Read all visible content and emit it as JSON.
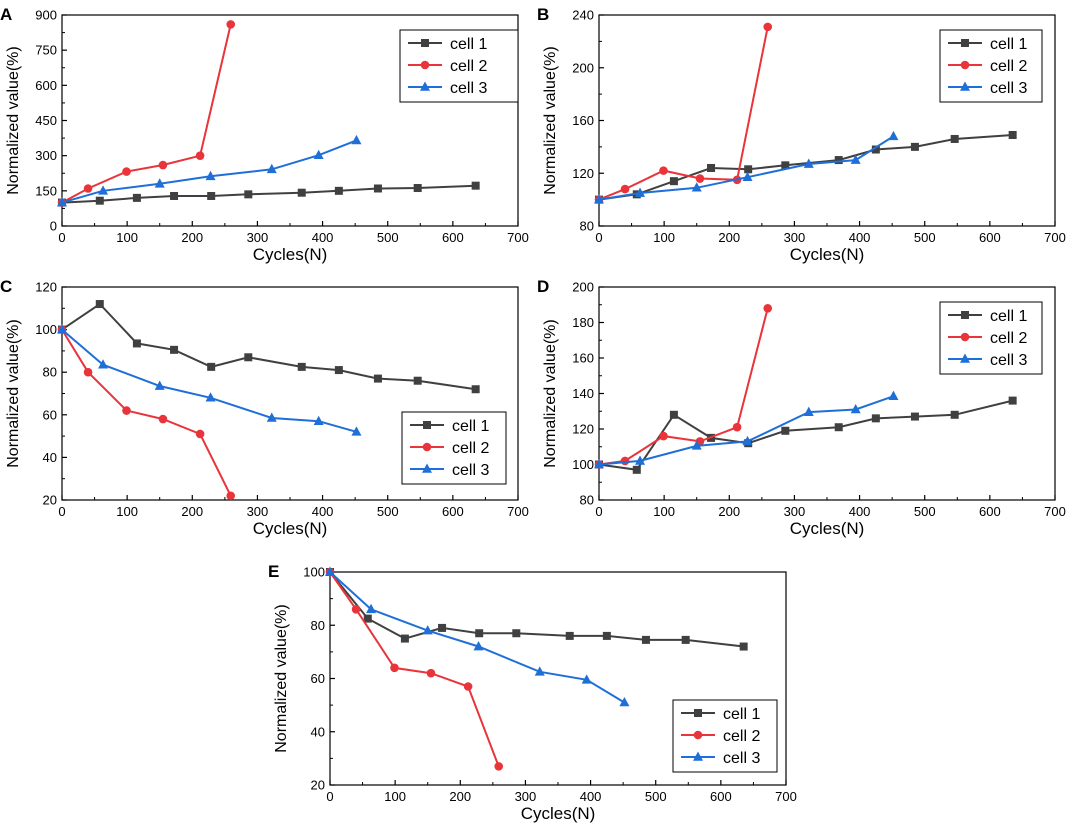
{
  "figure": {
    "description_panels": [
      "A",
      "B",
      "C",
      "D",
      "E"
    ]
  },
  "colors": {
    "cell1": "#404040",
    "cell2": "#e8343a",
    "cell3": "#1f6fd8",
    "axis": "#000000"
  },
  "chart_data": [
    {
      "panel": "A",
      "type": "line",
      "xlabel": "Cycles(N)",
      "ylabel": "Normalized value(%)",
      "xlim": [
        0,
        700
      ],
      "ylim": [
        0,
        900
      ],
      "xticks": [
        0,
        100,
        200,
        300,
        400,
        500,
        600,
        700
      ],
      "yticks": [
        0,
        150,
        300,
        450,
        600,
        750,
        900
      ],
      "legend": "top-right",
      "series": [
        {
          "name": "cell 1",
          "marker": "square",
          "x": [
            0,
            58,
            115,
            172,
            229,
            286,
            368,
            425,
            485,
            546,
            635
          ],
          "y": [
            100,
            108,
            120,
            128,
            128,
            135,
            142,
            150,
            160,
            162,
            172
          ]
        },
        {
          "name": "cell 2",
          "marker": "circle",
          "x": [
            0,
            40,
            99,
            155,
            212,
            259
          ],
          "y": [
            100,
            160,
            232,
            260,
            300,
            860
          ]
        },
        {
          "name": "cell 3",
          "marker": "triangle",
          "x": [
            0,
            63,
            150,
            228,
            322,
            394,
            452
          ],
          "y": [
            100,
            150,
            180,
            212,
            242,
            302,
            365
          ]
        }
      ]
    },
    {
      "panel": "B",
      "type": "line",
      "xlabel": "Cycles(N)",
      "ylabel": "Normalized value(%)",
      "xlim": [
        0,
        700
      ],
      "ylim": [
        80,
        240
      ],
      "xticks": [
        0,
        100,
        200,
        300,
        400,
        500,
        600,
        700
      ],
      "yticks": [
        80,
        120,
        160,
        200,
        240
      ],
      "legend": "top-right",
      "series": [
        {
          "name": "cell 1",
          "marker": "square",
          "x": [
            0,
            58,
            115,
            172,
            229,
            286,
            368,
            425,
            485,
            546,
            635
          ],
          "y": [
            100,
            104,
            114,
            124,
            123,
            126,
            130,
            138,
            140,
            146,
            149
          ]
        },
        {
          "name": "cell 2",
          "marker": "circle",
          "x": [
            0,
            40,
            99,
            155,
            212,
            259
          ],
          "y": [
            100,
            108,
            122,
            116,
            115,
            231
          ]
        },
        {
          "name": "cell 3",
          "marker": "triangle",
          "x": [
            0,
            63,
            150,
            228,
            322,
            394,
            452
          ],
          "y": [
            100,
            105,
            109,
            117,
            127,
            130,
            148
          ]
        }
      ]
    },
    {
      "panel": "C",
      "type": "line",
      "xlabel": "Cycles(N)",
      "ylabel": "Normalized value(%)",
      "xlim": [
        0,
        700
      ],
      "ylim": [
        20,
        120
      ],
      "xticks": [
        0,
        100,
        200,
        300,
        400,
        500,
        600,
        700
      ],
      "yticks": [
        20,
        40,
        60,
        80,
        100,
        120
      ],
      "legend": "bottom-right",
      "series": [
        {
          "name": "cell 1",
          "marker": "square",
          "x": [
            0,
            58,
            115,
            172,
            229,
            286,
            368,
            425,
            485,
            546,
            635
          ],
          "y": [
            100,
            112,
            93.5,
            90.5,
            82.5,
            87,
            82.5,
            81,
            77,
            76,
            72
          ]
        },
        {
          "name": "cell 2",
          "marker": "circle",
          "x": [
            0,
            40,
            99,
            155,
            212,
            259
          ],
          "y": [
            100,
            80,
            62,
            58,
            51,
            22
          ]
        },
        {
          "name": "cell 3",
          "marker": "triangle",
          "x": [
            0,
            63,
            150,
            228,
            322,
            394,
            452
          ],
          "y": [
            100,
            83.5,
            73.5,
            68,
            58.5,
            57,
            52
          ]
        }
      ]
    },
    {
      "panel": "D",
      "type": "line",
      "xlabel": "Cycles(N)",
      "ylabel": "Normalized value(%)",
      "xlim": [
        0,
        700
      ],
      "ylim": [
        80,
        200
      ],
      "xticks": [
        0,
        100,
        200,
        300,
        400,
        500,
        600,
        700
      ],
      "yticks": [
        80,
        100,
        120,
        140,
        160,
        180,
        200
      ],
      "legend": "top-right",
      "series": [
        {
          "name": "cell 1",
          "marker": "square",
          "x": [
            0,
            58,
            115,
            172,
            229,
            286,
            368,
            425,
            485,
            546,
            635
          ],
          "y": [
            100,
            97,
            128,
            115,
            112,
            119,
            121,
            126,
            127,
            128,
            136
          ]
        },
        {
          "name": "cell 2",
          "marker": "circle",
          "x": [
            0,
            40,
            99,
            155,
            212,
            259
          ],
          "y": [
            100,
            102,
            116,
            113,
            121,
            188
          ]
        },
        {
          "name": "cell 3",
          "marker": "triangle",
          "x": [
            0,
            63,
            150,
            228,
            322,
            394,
            452
          ],
          "y": [
            100,
            102,
            110.5,
            113,
            129.5,
            131,
            138.5
          ]
        }
      ]
    },
    {
      "panel": "E",
      "type": "line",
      "xlabel": "Cycles(N)",
      "ylabel": "Normalized value(%)",
      "xlim": [
        0,
        700
      ],
      "ylim": [
        20,
        100
      ],
      "xticks": [
        0,
        100,
        200,
        300,
        400,
        500,
        600,
        700
      ],
      "yticks": [
        20,
        40,
        60,
        80,
        100
      ],
      "legend": "bottom-right",
      "series": [
        {
          "name": "cell 1",
          "marker": "square",
          "x": [
            0,
            58,
            115,
            172,
            229,
            286,
            368,
            425,
            485,
            546,
            635
          ],
          "y": [
            100,
            82.5,
            75,
            79,
            77,
            77,
            76,
            76,
            74.5,
            74.5,
            72
          ]
        },
        {
          "name": "cell 2",
          "marker": "circle",
          "x": [
            0,
            40,
            99,
            155,
            212,
            259
          ],
          "y": [
            100,
            86,
            64,
            62,
            57,
            27
          ]
        },
        {
          "name": "cell 3",
          "marker": "triangle",
          "x": [
            0,
            63,
            150,
            228,
            322,
            394,
            452
          ],
          "y": [
            100,
            86,
            78,
            72,
            62.5,
            59.5,
            51
          ]
        }
      ]
    }
  ]
}
